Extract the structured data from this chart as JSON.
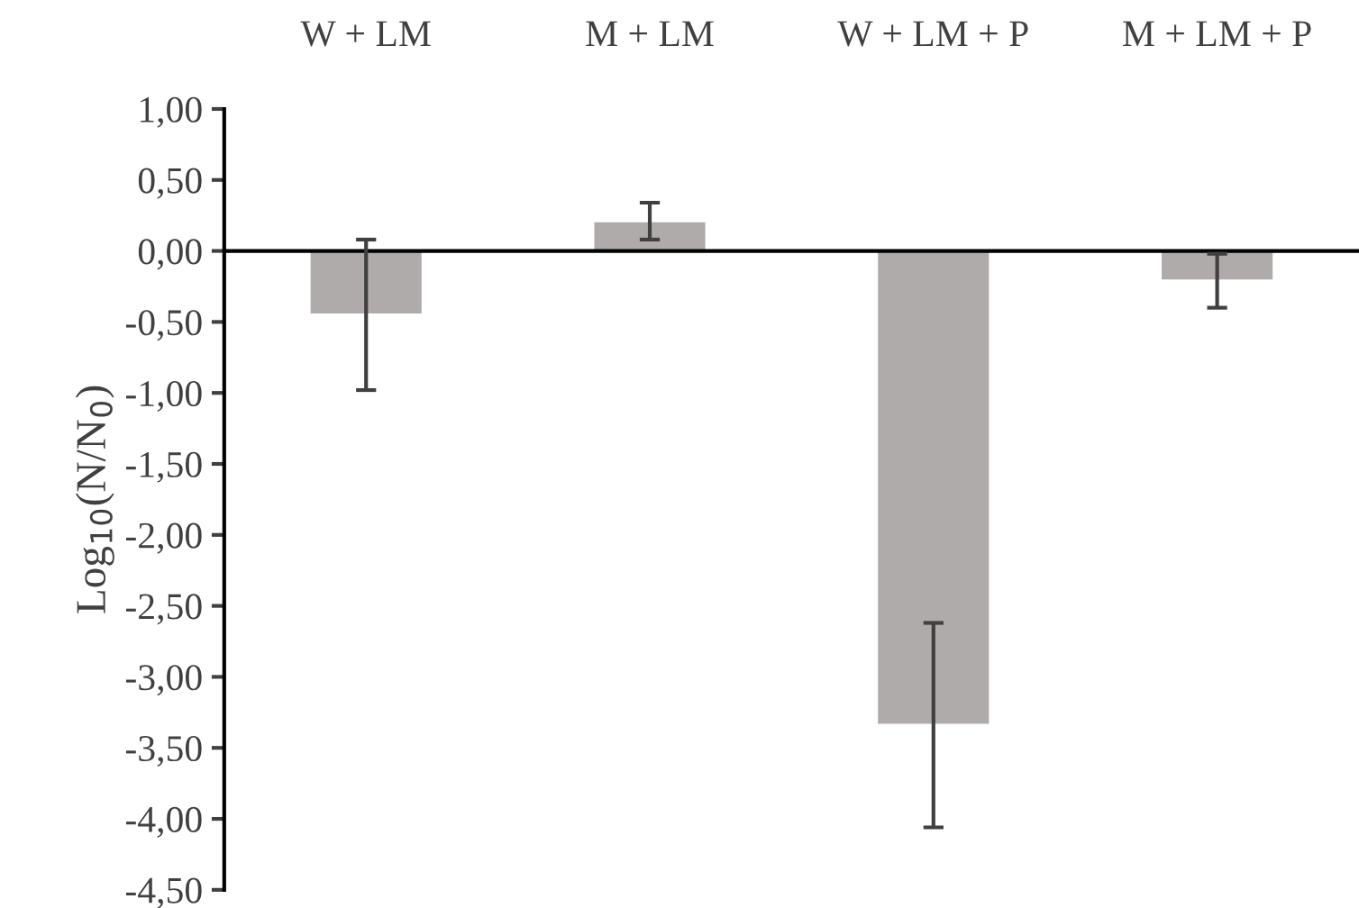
{
  "chart_data": {
    "type": "bar",
    "ylabel": "Log$_{10}$(N/N$_{0}$)",
    "categories": [
      "W + LM",
      "M + LM",
      "W + LM + P",
      "M + LM + P"
    ],
    "values": [
      -0.45,
      0.21,
      -3.34,
      -0.21
    ],
    "errors": [
      0.53,
      0.13,
      0.72,
      0.19
    ],
    "color": "#b0abab",
    "ylim": [
      -4.5,
      1.0
    ],
    "yticks": [
      {
        "value": -4.5,
        "label": "-4,50"
      },
      {
        "value": -4.0,
        "label": "-4,00"
      },
      {
        "value": -3.5,
        "label": "-3,50"
      },
      {
        "value": -3.0,
        "label": "-3,00"
      },
      {
        "value": -2.5,
        "label": "-2,50"
      },
      {
        "value": -2.0,
        "label": "-2,00"
      },
      {
        "value": -1.5,
        "label": "-1,50"
      },
      {
        "value": -1.0,
        "label": "-1,00"
      },
      {
        "value": -0.5,
        "label": "-0,50"
      },
      {
        "value": 0.0,
        "label": "0,00"
      },
      {
        "value": 0.5,
        "label": "0,50"
      },
      {
        "value": 1.0,
        "label": "1,00"
      }
    ],
    "legend": false
  }
}
